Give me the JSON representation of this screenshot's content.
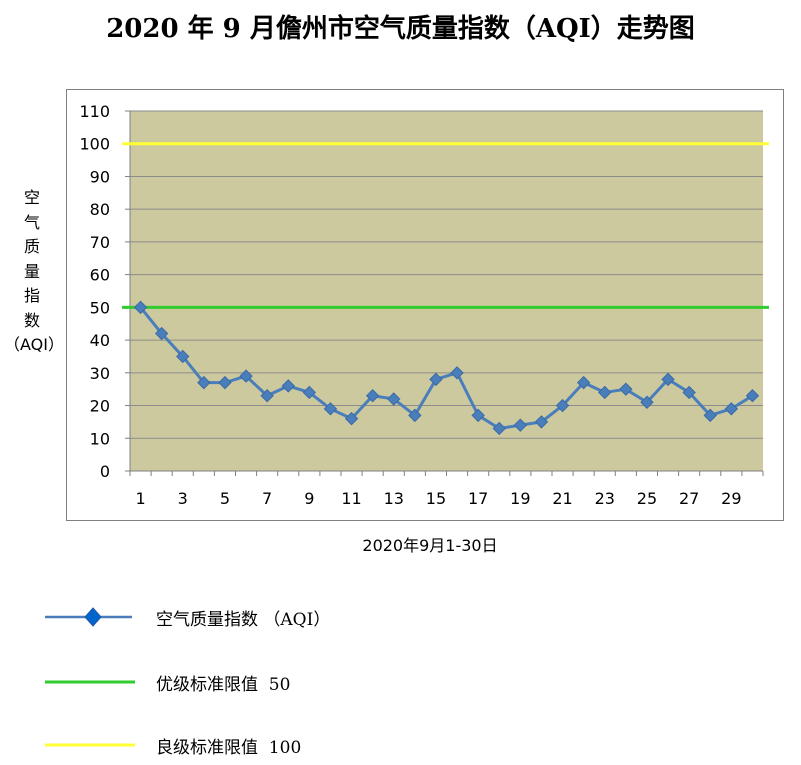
{
  "title": "2020 年 9 月儋州市空气质量指数（AQI）走势图",
  "ylabel_chars": [
    "空",
    "气",
    "质",
    "量",
    "指",
    "数",
    "（AQI）"
  ],
  "xlabel": "2020年9月1-30日",
  "colors": {
    "plot_bg": "#cdc99f",
    "grid": "#8c8c8c",
    "series": "#4a7ebb",
    "limit_good": "#2ecc2e",
    "limit_fine": "#ffff33"
  },
  "chart_data": {
    "type": "line",
    "title": "2020 年 9 月儋州市空气质量指数（AQI）走势图",
    "xlabel": "2020年9月1-30日",
    "ylabel": "空气质量指数（AQI）",
    "ylim": [
      0,
      110
    ],
    "yticks": [
      0,
      10,
      20,
      30,
      40,
      50,
      60,
      70,
      80,
      90,
      100,
      110
    ],
    "x": [
      1,
      2,
      3,
      4,
      5,
      6,
      7,
      8,
      9,
      10,
      11,
      12,
      13,
      14,
      15,
      16,
      17,
      18,
      19,
      20,
      21,
      22,
      23,
      24,
      25,
      26,
      27,
      28,
      29,
      30
    ],
    "xtick_labels": [
      "1",
      "3",
      "5",
      "7",
      "9",
      "11",
      "13",
      "15",
      "17",
      "19",
      "21",
      "23",
      "25",
      "27",
      "29"
    ],
    "series": [
      {
        "name": "空气质量指数 （AQI）",
        "values": [
          50,
          42,
          35,
          27,
          27,
          29,
          23,
          26,
          24,
          19,
          16,
          23,
          22,
          17,
          28,
          30,
          17,
          13,
          14,
          15,
          20,
          27,
          24,
          25,
          21,
          28,
          24,
          17,
          19,
          23
        ]
      }
    ],
    "reference_lines": [
      {
        "name": "优级标准限值 50",
        "value": 50
      },
      {
        "name": "良级标准限值 100",
        "value": 100
      }
    ],
    "grid": true,
    "legend_position": "bottom"
  },
  "legend": [
    {
      "label": "空气质量指数 （AQI）",
      "icon": "blue-line-diamond-icon"
    },
    {
      "label": "优级标准限值  50",
      "icon": "green-line-icon"
    },
    {
      "label": "良级标准限值  100",
      "icon": "yellow-line-icon"
    }
  ]
}
